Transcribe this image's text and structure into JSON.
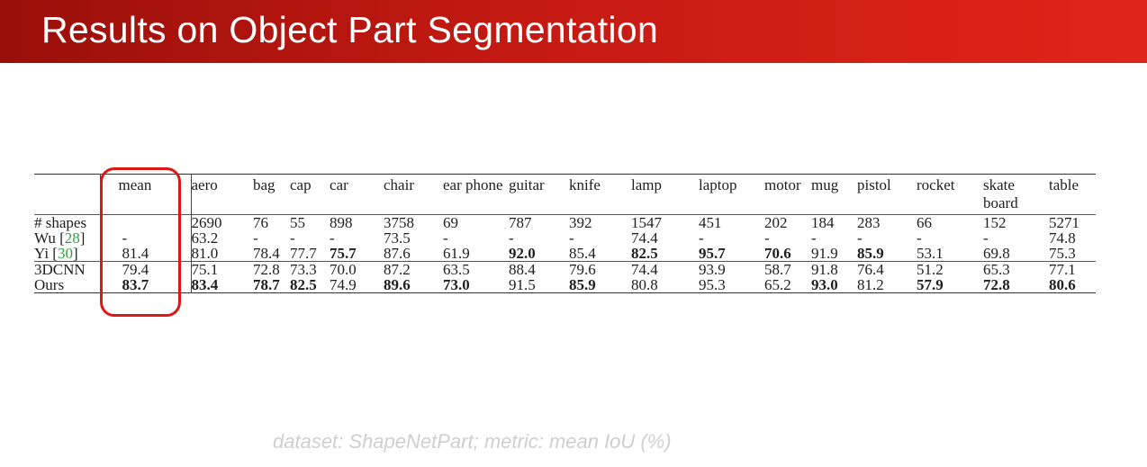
{
  "slide": {
    "title": "Results on Object Part Segmentation",
    "caption": "dataset: ShapeNetPart; metric: mean IoU (%)"
  },
  "table": {
    "columns": [
      "mean",
      "aero",
      "bag",
      "cap",
      "car",
      "chair",
      "ear phone",
      "guitar",
      "knife",
      "lamp",
      "laptop",
      "motor",
      "mug",
      "pistol",
      "rocket",
      "skate board",
      "table"
    ],
    "rows": [
      {
        "name": "# shapes",
        "ref": "",
        "values": [
          "",
          "2690",
          "76",
          "55",
          "898",
          "3758",
          "69",
          "787",
          "392",
          "1547",
          "451",
          "202",
          "184",
          "283",
          "66",
          "152",
          "5271"
        ],
        "bold": []
      },
      {
        "name": "Wu [",
        "ref": "28",
        "values": [
          "-",
          "63.2",
          "-",
          "-",
          "-",
          "73.5",
          "-",
          "-",
          "-",
          "74.4",
          "-",
          "-",
          "-",
          "-",
          "-",
          "-",
          "74.8"
        ],
        "bold": []
      },
      {
        "name": "Yi [",
        "ref": "30",
        "values": [
          "81.4",
          "81.0",
          "78.4",
          "77.7",
          "75.7",
          "87.6",
          "61.9",
          "92.0",
          "85.4",
          "82.5",
          "95.7",
          "70.6",
          "91.9",
          "85.9",
          "53.1",
          "69.8",
          "75.3"
        ],
        "bold": [
          4,
          7,
          9,
          10,
          11,
          13
        ]
      },
      {
        "name": "3DCNN",
        "ref": "",
        "values": [
          "79.4",
          "75.1",
          "72.8",
          "73.3",
          "70.0",
          "87.2",
          "63.5",
          "88.4",
          "79.6",
          "74.4",
          "93.9",
          "58.7",
          "91.8",
          "76.4",
          "51.2",
          "65.3",
          "77.1"
        ],
        "bold": []
      },
      {
        "name": "Ours",
        "ref": "",
        "values": [
          "83.7",
          "83.4",
          "78.7",
          "82.5",
          "74.9",
          "89.6",
          "73.0",
          "91.5",
          "85.9",
          "80.8",
          "95.3",
          "65.2",
          "93.0",
          "81.2",
          "57.9",
          "72.8",
          "80.6"
        ],
        "bold": [
          0,
          1,
          2,
          3,
          5,
          6,
          8,
          12,
          14,
          15,
          16
        ]
      }
    ]
  },
  "colors": {
    "header_red": "#c41a12",
    "highlight": "#e01515",
    "citation": "#2aa53a"
  }
}
